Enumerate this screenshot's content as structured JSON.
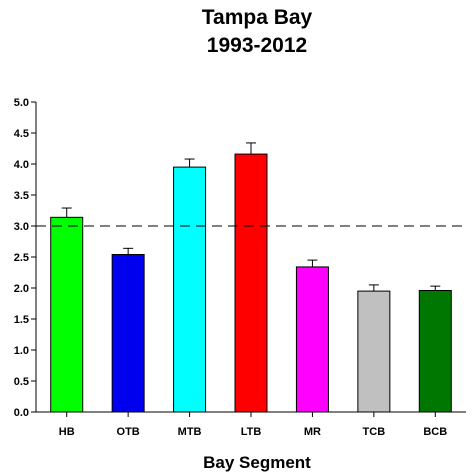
{
  "chart_data": {
    "type": "bar",
    "title": "Tampa Bay",
    "subtitle": "1993-2012",
    "xlabel": "Bay Segment",
    "ylabel": "",
    "ylim": [
      0,
      5
    ],
    "yticks": [
      "0.0",
      "0.5",
      "1.0",
      "1.5",
      "2.0",
      "2.5",
      "3.0",
      "3.5",
      "4.0",
      "4.5",
      "5.0"
    ],
    "grid": false,
    "reference_line": {
      "y": 3.0,
      "style": "dashed"
    },
    "categories": [
      "HB",
      "OTB",
      "MTB",
      "LTB",
      "MR",
      "TCB",
      "BCB"
    ],
    "values": [
      3.14,
      2.54,
      3.95,
      4.16,
      2.34,
      1.95,
      1.96
    ],
    "errors": [
      0.15,
      0.1,
      0.13,
      0.18,
      0.11,
      0.1,
      0.07
    ],
    "colors": [
      "#00ff00",
      "#0000ee",
      "#00ffff",
      "#ff0000",
      "#ff00ff",
      "#c0c0c0",
      "#007700"
    ]
  }
}
